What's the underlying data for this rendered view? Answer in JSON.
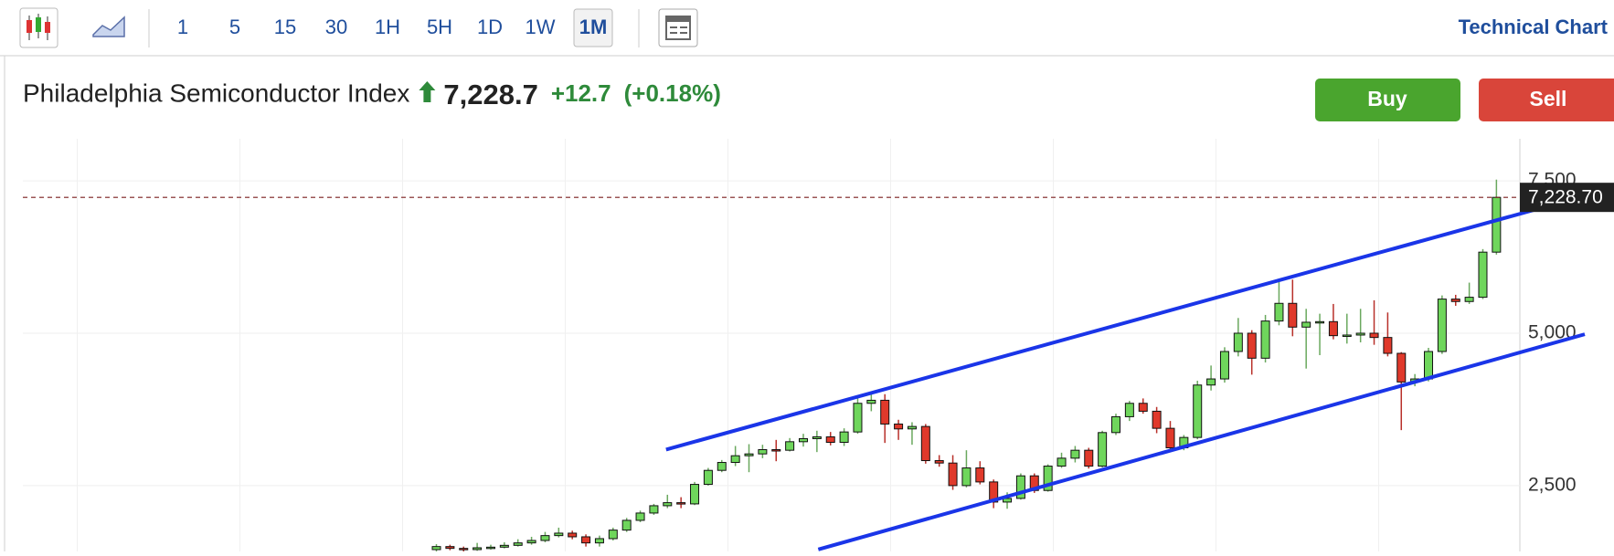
{
  "toolbar": {
    "intervals": [
      "1",
      "5",
      "15",
      "30",
      "1H",
      "5H",
      "1D",
      "1W",
      "1M"
    ],
    "selected": "1M",
    "link": "Technical Chart"
  },
  "header": {
    "name": "Philadelphia Semiconductor Index",
    "price": "7,228.7",
    "change": "+12.7",
    "change_pct": "(+0.18%)",
    "buy": "Buy",
    "sell": "Sell"
  },
  "chart_data": {
    "type": "candlestick",
    "open": [
      1450,
      1500,
      1470,
      1450,
      1480,
      1490,
      1520,
      1560,
      1600,
      1680,
      1720,
      1660,
      1560,
      1630,
      1770,
      1930,
      2050,
      2170,
      2220,
      2200,
      2520,
      2750,
      2880,
      2990,
      3020,
      3090,
      3080,
      3220,
      3270,
      3300,
      3210,
      3380,
      3850,
      3900,
      3510,
      3430,
      3470,
      2910,
      2870,
      2500,
      2790,
      2560,
      2230,
      2290,
      2660,
      2420,
      2820,
      2950,
      3080,
      2820,
      3370,
      3630,
      3850,
      3720,
      3440,
      3120,
      3290,
      4150,
      4250,
      4700,
      5000,
      4590,
      5200,
      5490,
      5100,
      5180,
      5190,
      4960,
      4970,
      5000,
      4930,
      4670,
      4200,
      4250,
      4700,
      5560,
      5520,
      5590,
      6330
    ],
    "high": [
      1540,
      1530,
      1500,
      1560,
      1530,
      1570,
      1620,
      1660,
      1740,
      1810,
      1760,
      1700,
      1680,
      1810,
      1970,
      2090,
      2200,
      2350,
      2310,
      2560,
      2790,
      2920,
      3150,
      3180,
      3170,
      3250,
      3280,
      3350,
      3400,
      3380,
      3440,
      3930,
      4010,
      4000,
      3580,
      3540,
      3510,
      3000,
      3000,
      3080,
      2900,
      2600,
      2390,
      2700,
      2700,
      2850,
      3040,
      3150,
      3120,
      3400,
      3680,
      3890,
      3930,
      3790,
      3560,
      3330,
      4220,
      4470,
      4770,
      5250,
      5050,
      5300,
      5860,
      5880,
      5400,
      5320,
      5480,
      5320,
      5400,
      5540,
      5340,
      4690,
      4330,
      4760,
      5620,
      5630,
      5830,
      6380,
      7520
    ],
    "low": [
      1420,
      1440,
      1420,
      1430,
      1450,
      1470,
      1500,
      1530,
      1570,
      1650,
      1620,
      1500,
      1500,
      1600,
      1740,
      1900,
      2020,
      2130,
      2130,
      2180,
      2500,
      2720,
      2820,
      2720,
      2950,
      2900,
      3060,
      3140,
      3050,
      3160,
      3150,
      3350,
      3720,
      3200,
      3250,
      3170,
      2860,
      2810,
      2430,
      2470,
      2520,
      2130,
      2120,
      2270,
      2380,
      2400,
      2790,
      2880,
      2780,
      2800,
      3330,
      3560,
      3680,
      3360,
      3050,
      3080,
      3260,
      4060,
      4190,
      4620,
      4320,
      4520,
      5130,
      4950,
      4420,
      4640,
      4900,
      4830,
      4850,
      4810,
      4620,
      3410,
      4130,
      4210,
      4660,
      5450,
      5480,
      5560,
      6290
    ],
    "close": [
      1500,
      1470,
      1450,
      1480,
      1490,
      1520,
      1560,
      1600,
      1680,
      1720,
      1660,
      1560,
      1630,
      1770,
      1930,
      2050,
      2170,
      2220,
      2200,
      2520,
      2750,
      2880,
      2990,
      3020,
      3090,
      3080,
      3220,
      3270,
      3300,
      3210,
      3380,
      3850,
      3900,
      3510,
      3430,
      3470,
      2910,
      2870,
      2500,
      2790,
      2560,
      2230,
      2290,
      2660,
      2420,
      2820,
      2950,
      3080,
      2820,
      3370,
      3630,
      3850,
      3720,
      3440,
      3120,
      3290,
      4150,
      4250,
      4700,
      5000,
      4590,
      5200,
      5490,
      5100,
      5180,
      5190,
      4960,
      4970,
      5000,
      4930,
      4670,
      4200,
      4250,
      4700,
      5560,
      5520,
      5590,
      6330,
      7228.7
    ],
    "up_color": "#6fd65c",
    "down_color": "#e0392b",
    "ylim": [
      1420,
      8190
    ],
    "yticks": [
      {
        "value": 2500,
        "label": "2,500"
      },
      {
        "value": 5000,
        "label": "5,000"
      },
      {
        "value": 7500,
        "label": "7,500"
      }
    ],
    "grid": true,
    "last_price": {
      "value": 7228.7,
      "label": "7,228.70"
    },
    "trendlines": [
      {
        "x": [
          16.9,
          83.3
        ],
        "values": [
          3091,
          7179
        ]
      },
      {
        "x": [
          28.1,
          84.5
        ],
        "values": [
          1453,
          4983
        ]
      }
    ],
    "trendline_color": "#1a35e8"
  }
}
